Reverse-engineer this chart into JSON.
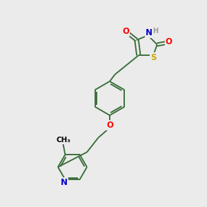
{
  "bg_color": "#ebebeb",
  "bond_color": "#3a6e3a",
  "atom_colors": {
    "O": "#ff0000",
    "N": "#0000cc",
    "S": "#ccaa00",
    "H": "#999999",
    "C": "#000000"
  },
  "bond_lw": 1.4,
  "font_size": 8.5
}
